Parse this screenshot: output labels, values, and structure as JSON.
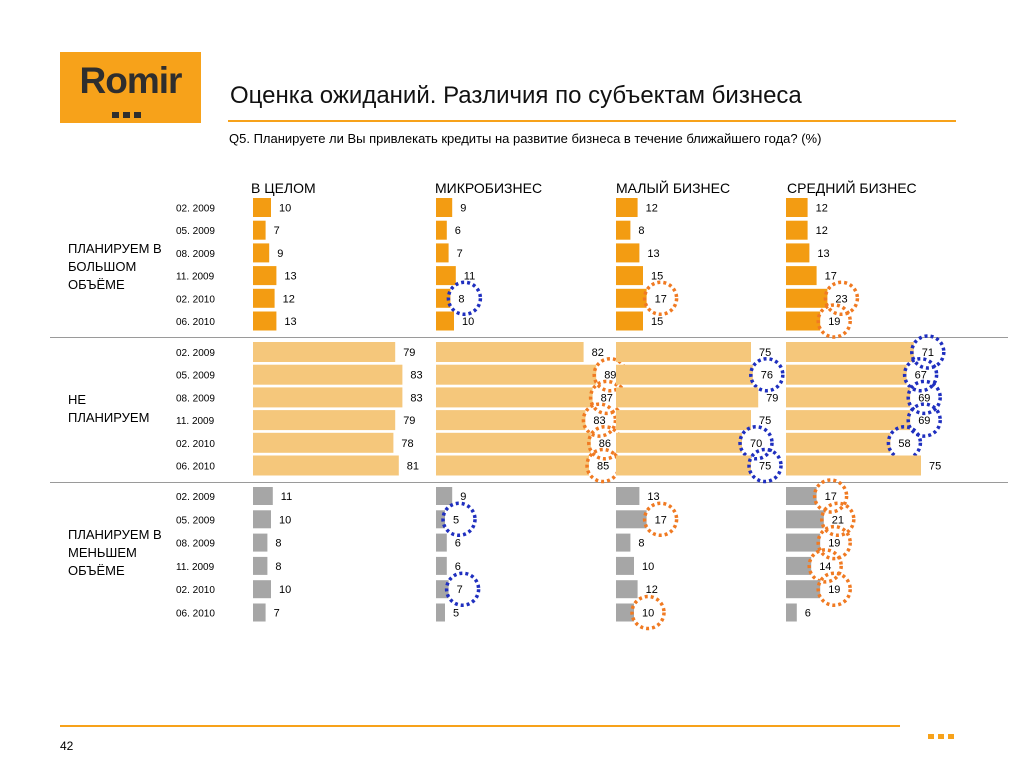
{
  "logo": {
    "text": "Romir"
  },
  "title": "Оценка ожиданий. Различия по субъектам бизнеса",
  "question": "Q5. Планируете ли Вы привлекать кредиты на развитие бизнеса в течение ближайшего года? (%)",
  "page_number": "42",
  "colors": {
    "accent": "#f7a21a",
    "plan_more": "#f39c12",
    "not_plan": "#f5c77b",
    "plan_less": "#a6a6a6",
    "circle_blue": "#1f2fbf",
    "circle_orange": "#f07a22"
  },
  "chart_data": {
    "type": "bar",
    "title": "Оценка ожиданий. Различия по субъектам бизнеса",
    "subtitle": "Q5. Планируете ли Вы привлекать кредиты на развитие бизнеса в течение ближайшего года? (%)",
    "columns": [
      "В ЦЕЛОМ",
      "МИКРОБИЗНЕС",
      "МАЛЫЙ БИЗНЕС",
      "СРЕДНИЙ БИЗНЕС"
    ],
    "periods": [
      "02. 2009",
      "05. 2009",
      "08. 2009",
      "11. 2009",
      "02. 2010",
      "06. 2010"
    ],
    "groups": [
      {
        "name": "ПЛАНИРУЕМ В БОЛЬШОМ ОБЪЁМЕ",
        "values": [
          [
            10,
            7,
            9,
            13,
            12,
            13
          ],
          [
            9,
            6,
            7,
            11,
            8,
            10
          ],
          [
            12,
            8,
            13,
            15,
            17,
            15
          ],
          [
            12,
            12,
            13,
            17,
            23,
            19
          ]
        ],
        "highlights": [
          [
            null,
            null,
            null,
            null,
            null,
            null
          ],
          [
            null,
            null,
            null,
            null,
            "blue",
            null
          ],
          [
            null,
            null,
            null,
            null,
            "orange",
            null
          ],
          [
            null,
            null,
            null,
            null,
            "orange",
            "orange"
          ]
        ]
      },
      {
        "name": "НЕ ПЛАНИРУЕМ",
        "values": [
          [
            79,
            83,
            83,
            79,
            78,
            81
          ],
          [
            82,
            89,
            87,
            83,
            86,
            85
          ],
          [
            75,
            76,
            79,
            75,
            70,
            75
          ],
          [
            71,
            67,
            69,
            69,
            58,
            75
          ]
        ],
        "highlights": [
          [
            null,
            null,
            null,
            null,
            null,
            null
          ],
          [
            null,
            "orange",
            "orange",
            "orange",
            "orange",
            "orange"
          ],
          [
            null,
            "blue",
            null,
            null,
            "blue",
            "blue"
          ],
          [
            "blue",
            "blue",
            "blue",
            "blue",
            "blue",
            null
          ]
        ]
      },
      {
        "name": "ПЛАНИРУЕМ В МЕНЬШЕМ ОБЪЁМЕ",
        "values": [
          [
            11,
            10,
            8,
            8,
            10,
            7
          ],
          [
            9,
            5,
            6,
            6,
            7,
            5
          ],
          [
            13,
            17,
            8,
            10,
            12,
            10
          ],
          [
            17,
            21,
            19,
            14,
            19,
            6
          ]
        ],
        "highlights": [
          [
            null,
            null,
            null,
            null,
            null,
            null
          ],
          [
            null,
            "blue",
            null,
            null,
            "blue",
            null
          ],
          [
            null,
            "orange",
            null,
            null,
            null,
            "orange"
          ],
          [
            "orange",
            "orange",
            "orange",
            "orange",
            "orange",
            null
          ]
        ]
      }
    ]
  }
}
